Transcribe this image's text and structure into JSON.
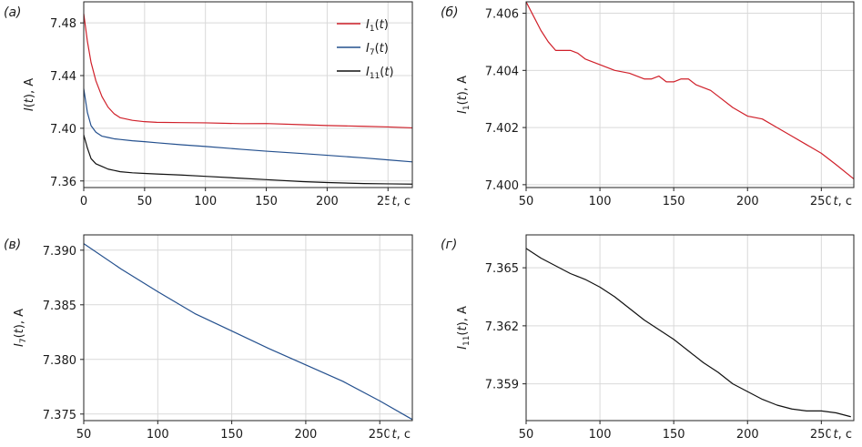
{
  "chart_data": [
    {
      "type": "line",
      "panel_label": "(а)",
      "ylabel": "I(t), A",
      "xlabel_end": "t, с",
      "xlim": [
        0,
        270
      ],
      "ylim": [
        7.355,
        7.496
      ],
      "x_ticks": [
        0,
        50,
        100,
        150,
        200,
        250
      ],
      "y_ticks": [
        7.36,
        7.4,
        7.44,
        7.48
      ],
      "y_tick_labels": [
        "7.36",
        "7.40",
        "7.44",
        "7.48"
      ],
      "grid": true,
      "legend": "top-right",
      "series": [
        {
          "name": "I1(t)",
          "legend_main": "I",
          "legend_sub": "1",
          "legend_tail": "(t)",
          "color": "#d0202a",
          "x": [
            0,
            3,
            6,
            10,
            15,
            20,
            25,
            30,
            40,
            50,
            60,
            80,
            100,
            130,
            150,
            180,
            200,
            230,
            250,
            270
          ],
          "y": [
            7.487,
            7.466,
            7.45,
            7.436,
            7.424,
            7.416,
            7.411,
            7.408,
            7.406,
            7.405,
            7.4045,
            7.4043,
            7.4041,
            7.4035,
            7.4036,
            7.4027,
            7.4021,
            7.4015,
            7.401,
            7.4003
          ]
        },
        {
          "name": "I7(t)",
          "legend_main": "I",
          "legend_sub": "7",
          "legend_tail": "(t)",
          "color": "#24508e",
          "x": [
            0,
            3,
            6,
            10,
            15,
            20,
            25,
            30,
            40,
            50,
            60,
            80,
            100,
            130,
            150,
            180,
            200,
            230,
            250,
            270
          ],
          "y": [
            7.43,
            7.412,
            7.402,
            7.397,
            7.394,
            7.393,
            7.392,
            7.3915,
            7.3905,
            7.3898,
            7.389,
            7.3875,
            7.3862,
            7.384,
            7.3826,
            7.3808,
            7.3795,
            7.3775,
            7.376,
            7.3745
          ]
        },
        {
          "name": "I11(t)",
          "legend_main": "I",
          "legend_sub": "11",
          "legend_tail": "(t)",
          "color": "#111111",
          "x": [
            0,
            3,
            6,
            10,
            15,
            20,
            25,
            30,
            40,
            50,
            60,
            80,
            100,
            130,
            150,
            180,
            200,
            230,
            250,
            270
          ],
          "y": [
            7.395,
            7.385,
            7.377,
            7.373,
            7.371,
            7.369,
            7.368,
            7.367,
            7.3662,
            7.3657,
            7.3653,
            7.3645,
            7.3635,
            7.362,
            7.361,
            7.3595,
            7.3588,
            7.358,
            7.3578,
            7.3576
          ]
        }
      ]
    },
    {
      "type": "line",
      "panel_label": "(б)",
      "ylabel": "I1(t), A",
      "ylabel_main": "I",
      "ylabel_sub": "1",
      "ylabel_tail": "(t), A",
      "xlabel_end": "t, с",
      "xlim": [
        50,
        272
      ],
      "ylim": [
        7.3999,
        7.4064
      ],
      "x_ticks": [
        50,
        100,
        150,
        200,
        250
      ],
      "y_ticks": [
        7.4,
        7.402,
        7.404,
        7.406
      ],
      "y_tick_labels": [
        "7.400",
        "7.402",
        "7.404",
        "7.406"
      ],
      "grid": true,
      "series": [
        {
          "color": "#d0202a",
          "x": [
            50,
            55,
            60,
            65,
            70,
            75,
            80,
            85,
            90,
            95,
            100,
            110,
            120,
            130,
            135,
            140,
            145,
            150,
            155,
            160,
            165,
            170,
            175,
            180,
            190,
            200,
            210,
            220,
            230,
            240,
            250,
            260,
            272
          ],
          "y": [
            7.4064,
            7.4059,
            7.4054,
            7.405,
            7.4047,
            7.4047,
            7.4047,
            7.4046,
            7.4044,
            7.4043,
            7.4042,
            7.404,
            7.4039,
            7.4037,
            7.4037,
            7.4038,
            7.4036,
            7.4036,
            7.4037,
            7.4037,
            7.4035,
            7.4034,
            7.4033,
            7.4031,
            7.4027,
            7.4024,
            7.4023,
            7.402,
            7.4017,
            7.4014,
            7.4011,
            7.4007,
            7.4002
          ]
        }
      ]
    },
    {
      "type": "line",
      "panel_label": "(в)",
      "ylabel": "I7(t), A",
      "ylabel_main": "I",
      "ylabel_sub": "7",
      "ylabel_tail": "(t), A",
      "xlabel_end": "t, с",
      "xlim": [
        50,
        272
      ],
      "ylim": [
        7.3744,
        7.3914
      ],
      "x_ticks": [
        50,
        100,
        150,
        200,
        250
      ],
      "y_ticks": [
        7.375,
        7.38,
        7.385,
        7.39
      ],
      "y_tick_labels": [
        "7.375",
        "7.380",
        "7.385",
        "7.390"
      ],
      "grid": true,
      "series": [
        {
          "color": "#24508e",
          "x": [
            50,
            75,
            100,
            125,
            150,
            175,
            200,
            225,
            250,
            272
          ],
          "y": [
            7.3906,
            7.3883,
            7.3862,
            7.3842,
            7.3826,
            7.381,
            7.3795,
            7.378,
            7.3762,
            7.3745
          ]
        }
      ]
    },
    {
      "type": "line",
      "panel_label": "(г)",
      "ylabel": "I11(t), A",
      "ylabel_main": "I",
      "ylabel_sub": "11",
      "ylabel_tail": "(t), A",
      "xlabel_end": "t, с",
      "xlim": [
        50,
        272
      ],
      "ylim": [
        7.3571,
        7.3667
      ],
      "x_ticks": [
        50,
        100,
        150,
        200,
        250
      ],
      "y_ticks": [
        7.359,
        7.362,
        7.365
      ],
      "y_tick_labels": [
        "7.359",
        "7.362",
        "7.365"
      ],
      "grid": true,
      "series": [
        {
          "color": "#111111",
          "x": [
            50,
            60,
            70,
            80,
            90,
            100,
            110,
            120,
            130,
            140,
            150,
            160,
            170,
            180,
            190,
            200,
            210,
            220,
            230,
            240,
            250,
            260,
            270
          ],
          "y": [
            7.366,
            7.3655,
            7.3651,
            7.3647,
            7.3644,
            7.364,
            7.3635,
            7.3629,
            7.3623,
            7.3618,
            7.3613,
            7.3607,
            7.3601,
            7.3596,
            7.359,
            7.3586,
            7.3582,
            7.3579,
            7.3577,
            7.3576,
            7.3576,
            7.3575,
            7.3573
          ]
        }
      ]
    }
  ]
}
